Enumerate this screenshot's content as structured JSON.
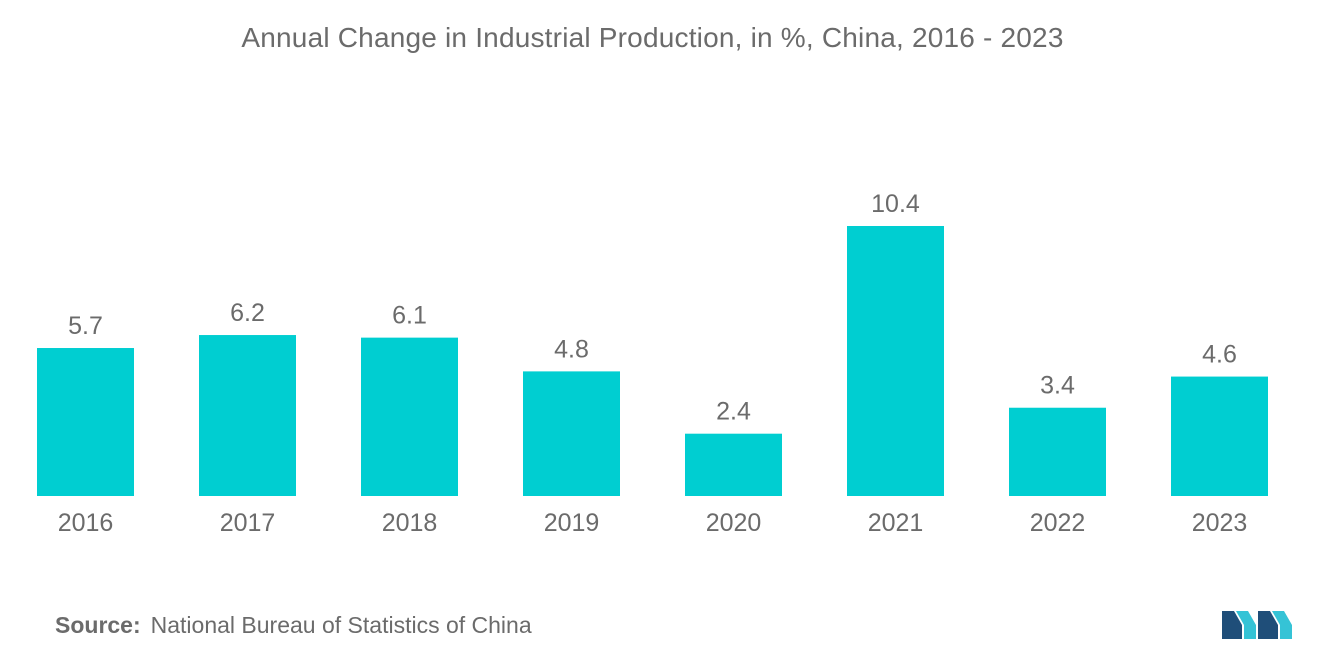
{
  "chart_data": {
    "type": "bar",
    "title": "Annual Change in Industrial Production, in %, China, 2016 - 2023",
    "categories": [
      "2016",
      "2017",
      "2018",
      "2019",
      "2020",
      "2021",
      "2022",
      "2023"
    ],
    "values": [
      5.7,
      6.2,
      6.1,
      4.8,
      2.4,
      10.4,
      3.4,
      4.6
    ],
    "value_labels": [
      "5.7",
      "6.2",
      "6.1",
      "4.8",
      "2.4",
      "10.4",
      "3.4",
      "4.6"
    ],
    "xlabel": "",
    "ylabel": "",
    "ylim": [
      0,
      10.4
    ],
    "grid": false,
    "legend": "none"
  },
  "source": {
    "label": "Source:",
    "text": "National Bureau of Statistics of China"
  },
  "colors": {
    "bar": "#00CED1",
    "text": "#6b6b6b",
    "logo_dark": "#1f4e79",
    "logo_light": "#35c3d6"
  },
  "logo": {
    "icon": "mordor-logo-icon"
  }
}
